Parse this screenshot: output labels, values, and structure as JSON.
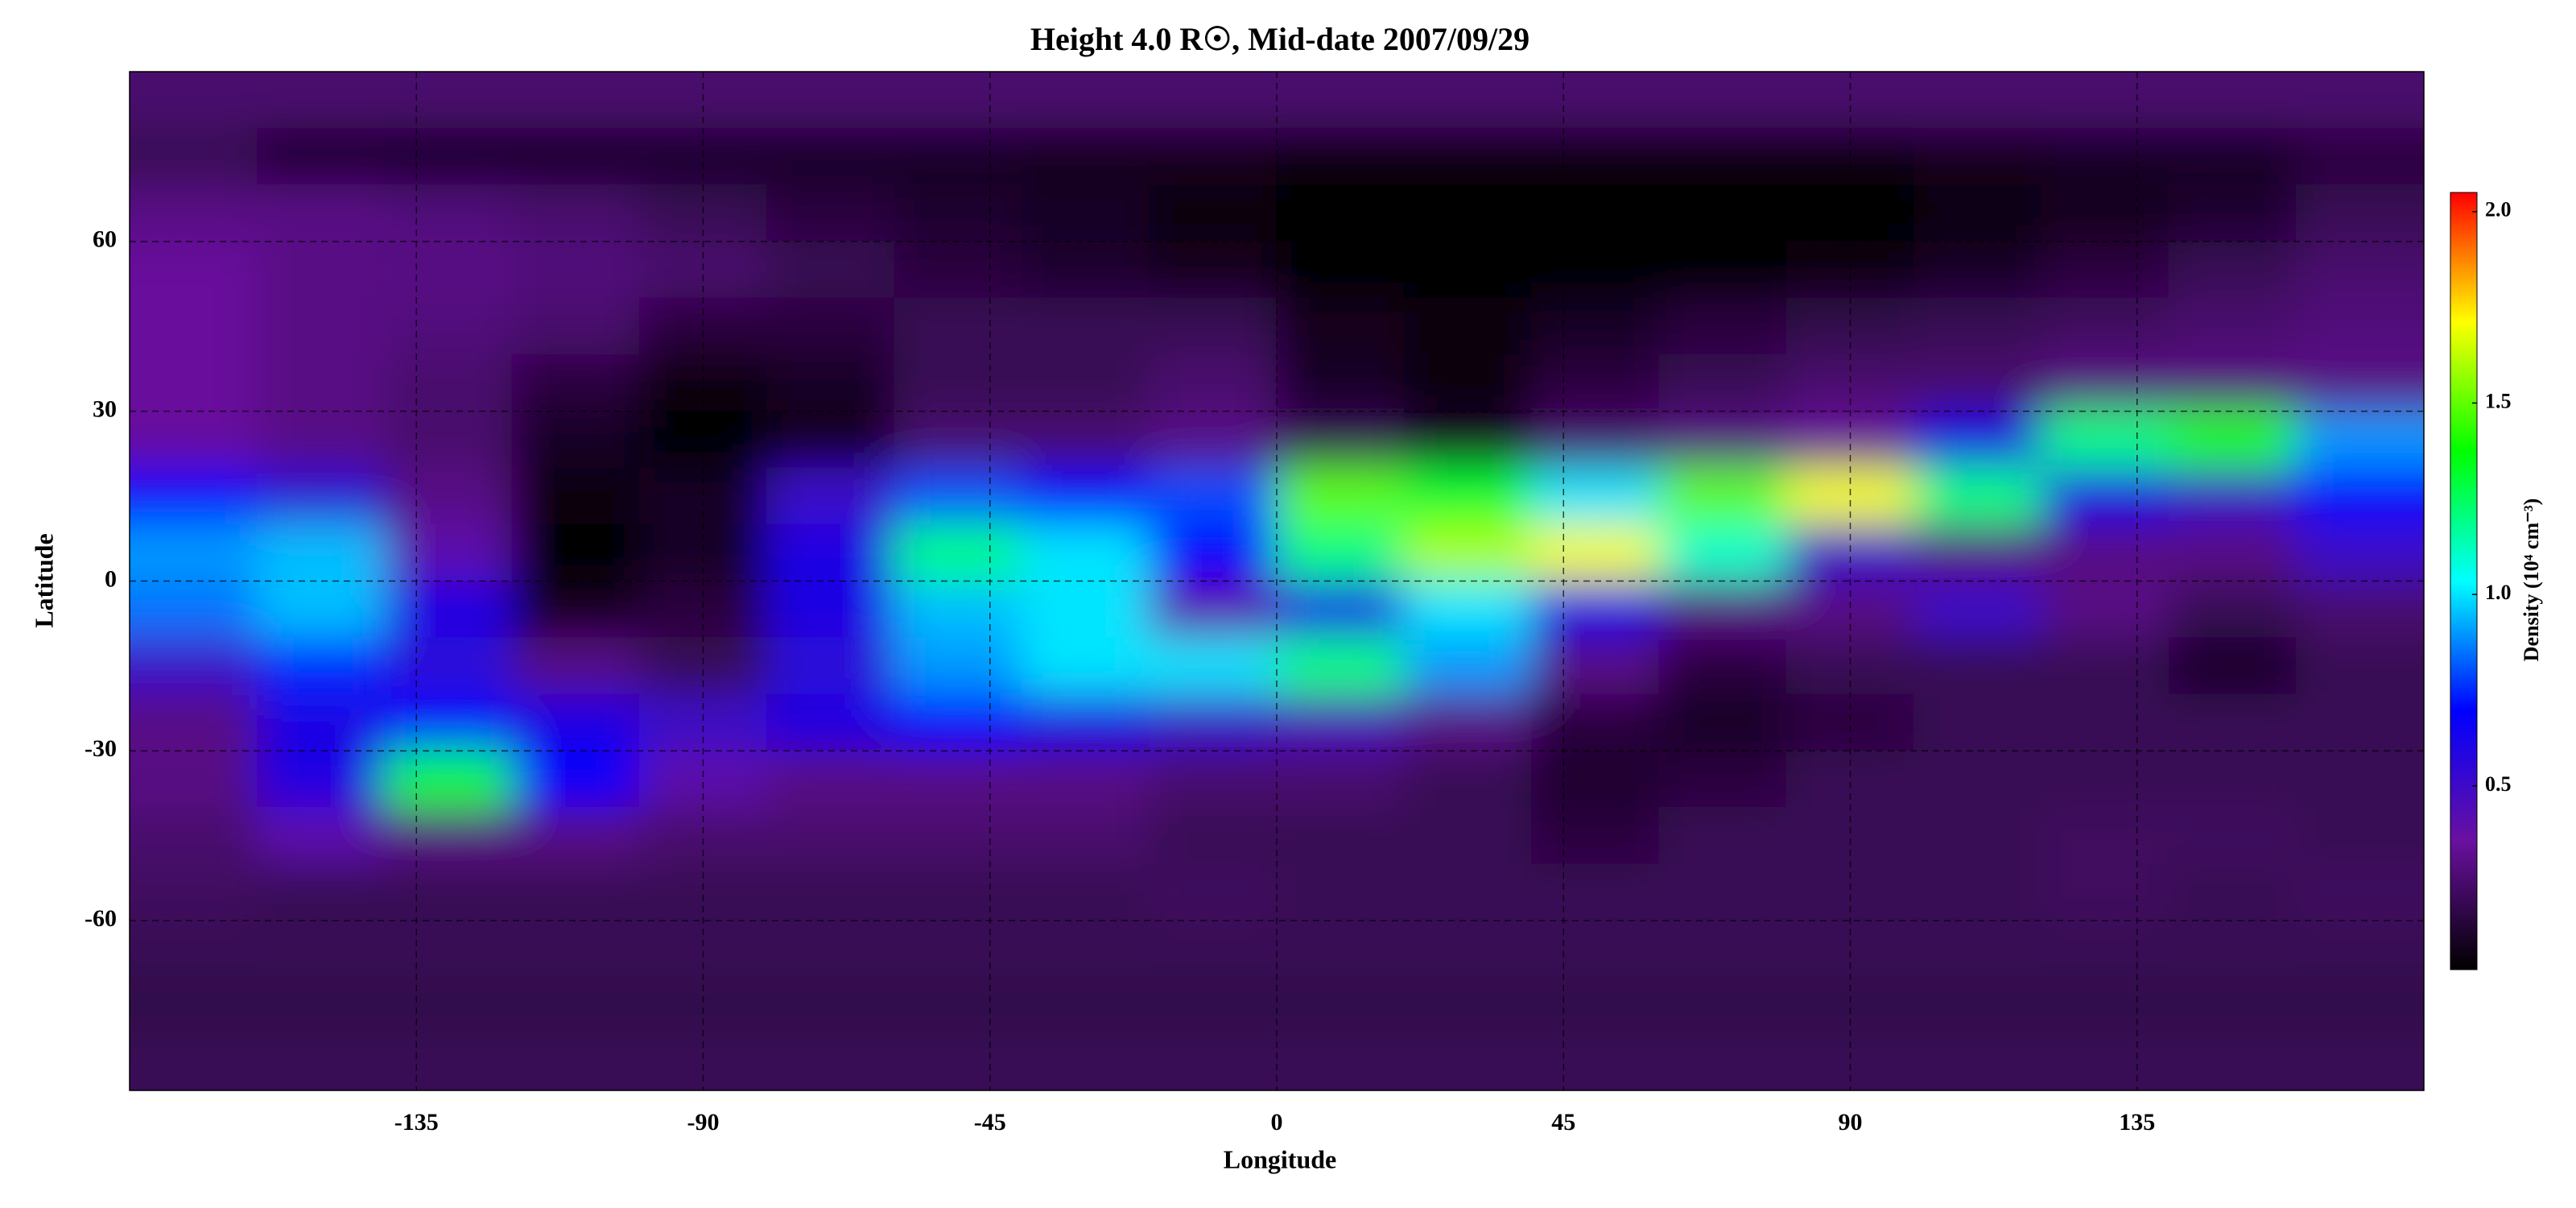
{
  "chart_data": {
    "type": "heatmap",
    "title": "Height 4.0 R☉, Mid-date 2007/09/29",
    "xlabel": "Longitude",
    "ylabel": "Latitude",
    "colorbar_label": "Density (10⁴ cm⁻³)",
    "xlim": [
      -180,
      180
    ],
    "xticks": [
      -135,
      -90,
      -45,
      0,
      45,
      90,
      135
    ],
    "ylim": [
      -90,
      90
    ],
    "yticks": [
      -60,
      -30,
      0,
      30,
      60
    ],
    "grid": true,
    "clim": [
      0.02,
      2.05
    ],
    "cticks": [
      {
        "value": 0.5,
        "label": "0.5"
      },
      {
        "value": 1.0,
        "label": "1.0"
      },
      {
        "value": 1.5,
        "label": "1.5"
      },
      {
        "value": 2.0,
        "label": "2.0"
      }
    ],
    "colormap": [
      "#000000",
      "#6a10a0",
      "#0000ff",
      "#00ffff",
      "#00ff00",
      "#ffff00",
      "#ff0000"
    ],
    "x": [
      -170,
      -150,
      -130,
      -110,
      -90,
      -70,
      -50,
      -30,
      -10,
      10,
      30,
      50,
      70,
      90,
      110,
      130,
      150,
      170
    ],
    "y": [
      85,
      75,
      65,
      55,
      45,
      35,
      25,
      15,
      5,
      -5,
      -15,
      -25,
      -35,
      -45,
      -55,
      -65,
      -75,
      -85
    ],
    "z": [
      [
        0.25,
        0.25,
        0.25,
        0.25,
        0.25,
        0.25,
        0.25,
        0.25,
        0.25,
        0.25,
        0.25,
        0.25,
        0.25,
        0.25,
        0.25,
        0.25,
        0.25,
        0.25
      ],
      [
        0.2,
        0.12,
        0.1,
        0.1,
        0.1,
        0.1,
        0.1,
        0.08,
        0.08,
        0.05,
        0.05,
        0.05,
        0.05,
        0.05,
        0.08,
        0.1,
        0.1,
        0.15
      ],
      [
        0.3,
        0.3,
        0.28,
        0.25,
        0.2,
        0.15,
        0.12,
        0.1,
        0.05,
        0.03,
        0.02,
        0.02,
        0.02,
        0.03,
        0.05,
        0.08,
        0.12,
        0.2
      ],
      [
        0.35,
        0.3,
        0.3,
        0.28,
        0.25,
        0.2,
        0.15,
        0.12,
        0.08,
        0.03,
        0.02,
        0.02,
        0.03,
        0.05,
        0.1,
        0.15,
        0.2,
        0.25
      ],
      [
        0.35,
        0.3,
        0.28,
        0.25,
        0.15,
        0.15,
        0.2,
        0.2,
        0.2,
        0.08,
        0.05,
        0.1,
        0.15,
        0.18,
        0.2,
        0.22,
        0.25,
        0.28
      ],
      [
        0.35,
        0.3,
        0.25,
        0.15,
        0.05,
        0.1,
        0.2,
        0.2,
        0.25,
        0.1,
        0.05,
        0.15,
        0.2,
        0.25,
        0.25,
        0.3,
        0.3,
        0.3
      ],
      [
        0.35,
        0.3,
        0.25,
        0.1,
        0.03,
        0.08,
        0.25,
        0.25,
        0.3,
        0.2,
        0.1,
        0.25,
        0.3,
        0.35,
        0.6,
        1.2,
        1.4,
        0.9
      ],
      [
        0.7,
        0.55,
        0.3,
        0.05,
        0.1,
        0.5,
        0.8,
        0.7,
        0.8,
        1.5,
        1.3,
        1.0,
        1.5,
        1.7,
        1.2,
        0.6,
        0.5,
        0.7
      ],
      [
        0.9,
        0.95,
        0.4,
        0.03,
        0.1,
        0.6,
        1.2,
        1.0,
        0.7,
        1.2,
        1.6,
        1.7,
        1.1,
        0.5,
        0.3,
        0.3,
        0.3,
        0.5
      ],
      [
        0.85,
        0.95,
        0.6,
        0.08,
        0.15,
        0.6,
        0.95,
        1.0,
        0.4,
        0.6,
        1.0,
        0.6,
        0.3,
        0.3,
        0.5,
        0.3,
        0.2,
        0.25
      ],
      [
        0.5,
        0.75,
        0.55,
        0.3,
        0.2,
        0.55,
        0.9,
        1.0,
        1.0,
        1.2,
        0.9,
        0.3,
        0.15,
        0.2,
        0.2,
        0.2,
        0.1,
        0.2
      ],
      [
        0.3,
        0.6,
        0.7,
        0.6,
        0.5,
        0.6,
        0.7,
        0.6,
        0.5,
        0.45,
        0.3,
        0.15,
        0.1,
        0.15,
        0.2,
        0.2,
        0.2,
        0.2
      ],
      [
        0.3,
        0.6,
        1.3,
        0.7,
        0.4,
        0.3,
        0.3,
        0.3,
        0.25,
        0.25,
        0.2,
        0.12,
        0.15,
        0.2,
        0.2,
        0.2,
        0.2,
        0.2
      ],
      [
        0.25,
        0.4,
        0.3,
        0.3,
        0.25,
        0.25,
        0.25,
        0.25,
        0.2,
        0.2,
        0.2,
        0.15,
        0.2,
        0.2,
        0.2,
        0.22,
        0.22,
        0.2
      ],
      [
        0.22,
        0.2,
        0.2,
        0.2,
        0.2,
        0.2,
        0.2,
        0.2,
        0.22,
        0.2,
        0.2,
        0.2,
        0.2,
        0.2,
        0.2,
        0.22,
        0.2,
        0.22
      ],
      [
        0.2,
        0.2,
        0.2,
        0.2,
        0.2,
        0.2,
        0.2,
        0.2,
        0.2,
        0.2,
        0.2,
        0.2,
        0.2,
        0.2,
        0.2,
        0.2,
        0.2,
        0.2
      ],
      [
        0.18,
        0.18,
        0.18,
        0.18,
        0.18,
        0.18,
        0.18,
        0.18,
        0.18,
        0.18,
        0.18,
        0.18,
        0.18,
        0.18,
        0.18,
        0.18,
        0.18,
        0.18
      ],
      [
        0.2,
        0.2,
        0.2,
        0.2,
        0.2,
        0.2,
        0.2,
        0.2,
        0.2,
        0.2,
        0.2,
        0.2,
        0.2,
        0.2,
        0.2,
        0.2,
        0.2,
        0.2
      ]
    ]
  }
}
